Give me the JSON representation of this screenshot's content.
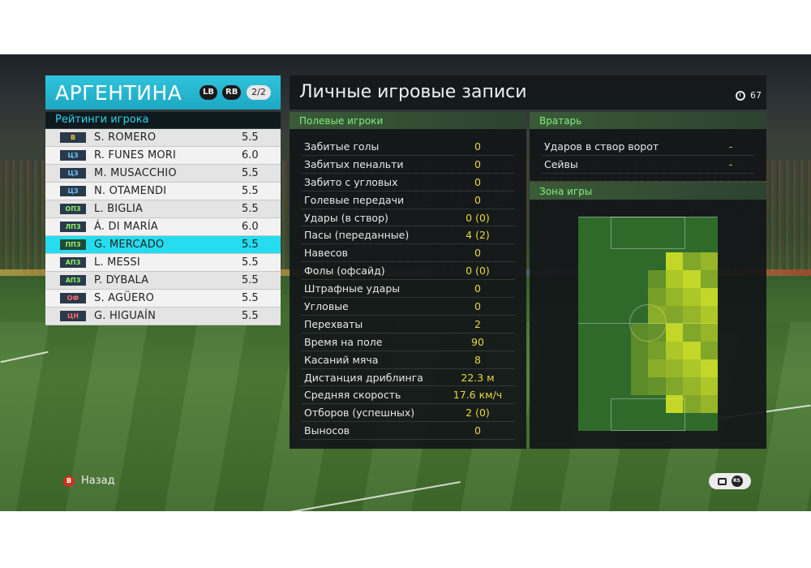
{
  "team": {
    "name": "АРГЕНТИНА",
    "lb": "LB",
    "rb": "RB",
    "page": "2/2"
  },
  "ratings": {
    "header": "Рейтинги игрока",
    "players": [
      {
        "pos": "В",
        "name": "S. ROMERO",
        "rating": "5.5",
        "color": "#f4c542",
        "pos_color": "#2a3a4a"
      },
      {
        "pos": "ЦЗ",
        "name": "R. FUNES MORI",
        "rating": "6.0",
        "color": "#6ec3ff",
        "pos_color": "#2a3a4a"
      },
      {
        "pos": "ЦЗ",
        "name": "M. MUSACCHIO",
        "rating": "5.5",
        "color": "#6ec3ff",
        "pos_color": "#2a3a4a"
      },
      {
        "pos": "ЦЗ",
        "name": "N. OTAMENDI",
        "rating": "5.5",
        "color": "#6ec3ff",
        "pos_color": "#2a3a4a"
      },
      {
        "pos": "ОПЗ",
        "name": "L. BIGLIA",
        "rating": "5.5",
        "color": "#8ef06a",
        "pos_color": "#2a3a4a"
      },
      {
        "pos": "ЛПЗ",
        "name": "Á. DI MARÍA",
        "rating": "6.0",
        "color": "#8ef06a",
        "pos_color": "#2a3a4a"
      },
      {
        "pos": "ППЗ",
        "name": "G. MERCADO",
        "rating": "5.5",
        "color": "#8ef06a",
        "pos_color": "#1f4a3a"
      },
      {
        "pos": "АПЗ",
        "name": "L. MESSI",
        "rating": "5.5",
        "color": "#8ef06a",
        "pos_color": "#2a3a4a"
      },
      {
        "pos": "АПЗ",
        "name": "P. DYBALA",
        "rating": "5.5",
        "color": "#8ef06a",
        "pos_color": "#2a3a4a"
      },
      {
        "pos": "ОФ",
        "name": "S. AGÜERO",
        "rating": "5.5",
        "color": "#ff6b6b",
        "pos_color": "#2a3a4a"
      },
      {
        "pos": "ЦН",
        "name": "G. HIGUAÍN",
        "rating": "5.5",
        "color": "#ff6b6b",
        "pos_color": "#2a3a4a"
      }
    ],
    "selected_index": 6
  },
  "main": {
    "title": "Личные игровые записи",
    "timer": "67",
    "field_players_header": "Полевые игроки",
    "stats": [
      {
        "label": "Забитые голы",
        "value": "0"
      },
      {
        "label": "Забитых пенальти",
        "value": "0"
      },
      {
        "label": "Забито с угловых",
        "value": "0"
      },
      {
        "label": "Голевые передачи",
        "value": "0"
      },
      {
        "label": "Удары (в створ)",
        "value": "0 (0)"
      },
      {
        "label": "Пасы (переданные)",
        "value": "4 (2)"
      },
      {
        "label": "Навесов",
        "value": "0"
      },
      {
        "label": "Фолы (офсайд)",
        "value": "0 (0)"
      },
      {
        "label": "Штрафные удары",
        "value": "0"
      },
      {
        "label": "Угловые",
        "value": "0"
      },
      {
        "label": "Перехваты",
        "value": "2"
      },
      {
        "label": "Время на поле",
        "value": "90"
      },
      {
        "label": "Касаний мяча",
        "value": "8"
      },
      {
        "label": "Дистанция дриблинга",
        "value": "22.3 м"
      },
      {
        "label": "Средняя скорость",
        "value": "17.6 км/ч"
      },
      {
        "label": "Отборов (успешных)",
        "value": "2 (0)"
      },
      {
        "label": "Выносов",
        "value": "0"
      }
    ],
    "goalkeeper_header": "Вратарь",
    "gk_stats": [
      {
        "label": "Ударов в створ ворот",
        "value": "-"
      },
      {
        "label": "Сейвы",
        "value": "-"
      }
    ],
    "zone_header": "Зона игры"
  },
  "footer": {
    "back_button": "B",
    "back_label": "Назад",
    "rs_label": "RS"
  }
}
